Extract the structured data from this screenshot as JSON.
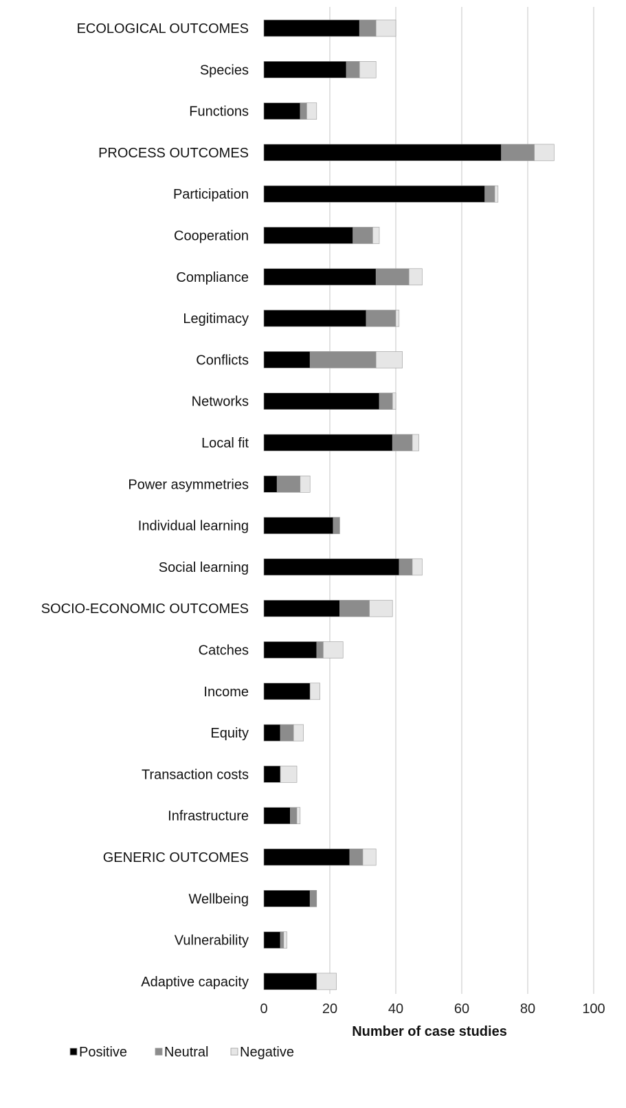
{
  "chart_data": {
    "type": "bar",
    "orientation": "horizontal",
    "stacked": true,
    "title": "",
    "xlabel": "Number of case studies",
    "ylabel": "",
    "xlim": [
      0,
      100
    ],
    "x_ticks": [
      "0",
      "20",
      "40",
      "60",
      "80",
      "100"
    ],
    "grid": "vertical",
    "legend_position": "bottom-left",
    "categories": [
      "ECOLOGICAL OUTCOMES",
      "Species",
      "Functions",
      "PROCESS OUTCOMES",
      "Participation",
      "Cooperation",
      "Compliance",
      "Legitimacy",
      "Conflicts",
      "Networks",
      "Local fit",
      "Power asymmetries",
      "Individual learning",
      "Social learning",
      "SOCIO-ECONOMIC OUTCOMES",
      "Catches",
      "Income",
      "Equity",
      "Transaction costs",
      "Infrastructure",
      "GENERIC OUTCOMES",
      "Wellbeing",
      "Vulnerability",
      "Adaptive capacity"
    ],
    "series": [
      {
        "name": "Positive",
        "color": "#000000",
        "values": [
          29,
          25,
          11,
          72,
          67,
          27,
          34,
          31,
          14,
          35,
          39,
          4,
          21,
          41,
          23,
          16,
          14,
          5,
          5,
          8,
          26,
          14,
          5,
          16
        ]
      },
      {
        "name": "Neutral",
        "color": "#8c8c8c",
        "values": [
          5,
          4,
          2,
          10,
          3,
          6,
          10,
          9,
          20,
          4,
          6,
          7,
          2,
          4,
          9,
          2,
          0,
          4,
          0,
          2,
          4,
          2,
          1,
          0
        ]
      },
      {
        "name": "Negative",
        "color": "#e6e6e6",
        "values": [
          6,
          5,
          3,
          6,
          1,
          2,
          4,
          1,
          8,
          1,
          2,
          3,
          0,
          3,
          7,
          6,
          3,
          3,
          5,
          1,
          4,
          0,
          1,
          6
        ]
      }
    ]
  }
}
